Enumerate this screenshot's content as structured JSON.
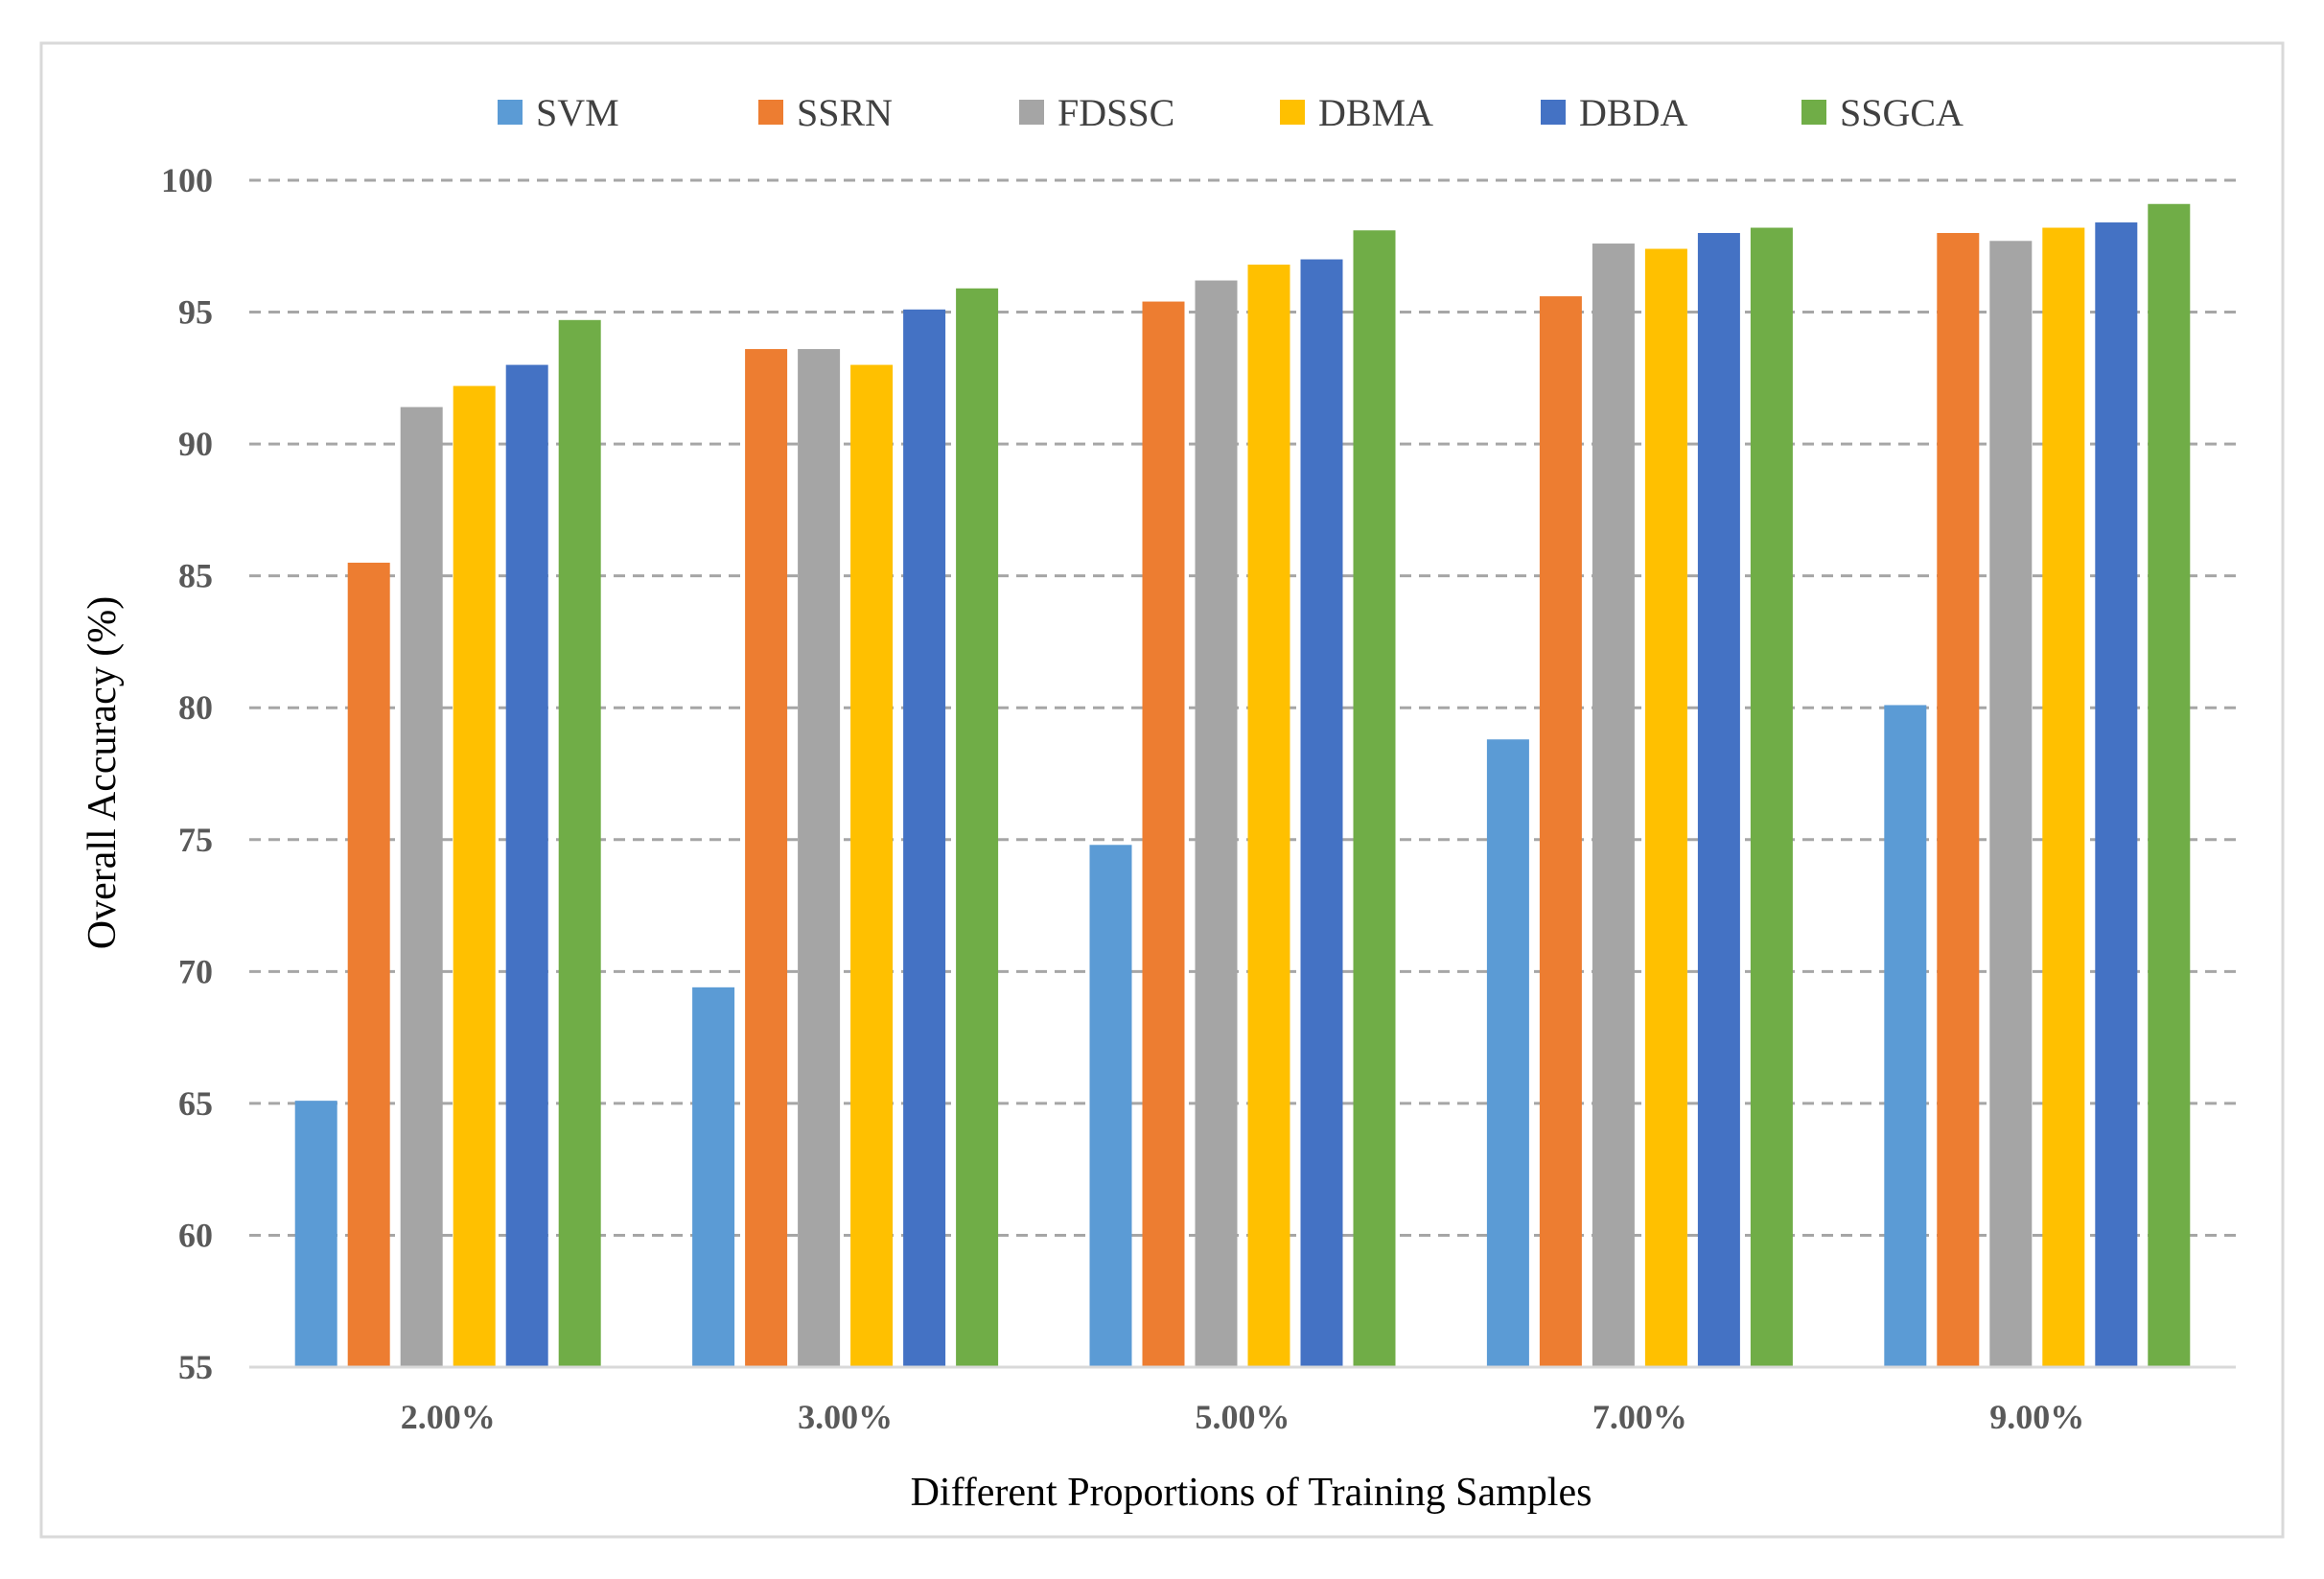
{
  "chart_data": {
    "type": "bar",
    "title": "",
    "xlabel": "Different Proportions of Training Samples",
    "ylabel": "Overall Accuracy (%)",
    "ylim": [
      55,
      100
    ],
    "yticks": [
      "55",
      "60",
      "65",
      "70",
      "75",
      "80",
      "85",
      "90",
      "95",
      "100"
    ],
    "grid": "horizontal dashed",
    "legend_position": "top",
    "categories": [
      "2.00%",
      "3.00%",
      "5.00%",
      "7.00%",
      "9.00%"
    ],
    "series": [
      {
        "name": "SVM",
        "color": "#5B9BD5",
        "values": [
          65.1,
          69.4,
          74.8,
          78.8,
          80.1
        ]
      },
      {
        "name": "SSRN",
        "color": "#ED7D31",
        "values": [
          85.5,
          93.6,
          95.4,
          95.6,
          98.0
        ]
      },
      {
        "name": "FDSSC",
        "color": "#A5A5A5",
        "values": [
          91.4,
          93.6,
          96.2,
          97.6,
          97.7
        ]
      },
      {
        "name": "DBMA",
        "color": "#FFC000",
        "values": [
          92.2,
          93.0,
          96.8,
          97.4,
          98.2
        ]
      },
      {
        "name": "DBDA",
        "color": "#4472C4",
        "values": [
          93.0,
          95.1,
          97.0,
          98.0,
          98.4
        ]
      },
      {
        "name": "SSGCA",
        "color": "#70AD47",
        "values": [
          94.7,
          95.9,
          98.1,
          98.2,
          99.1
        ]
      }
    ]
  }
}
